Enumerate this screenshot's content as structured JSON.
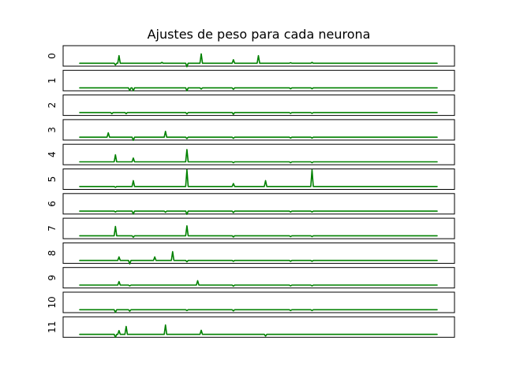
{
  "chart_data": {
    "type": "line",
    "title": "Ajustes de peso para cada neurona",
    "xlabel": "",
    "ylabel": "",
    "grid": false,
    "xticks": false,
    "yticks": false,
    "line_color": "#008000",
    "x_range": [
      0,
      100
    ],
    "subplot_ylim": [
      -1,
      6
    ],
    "subplot_labels": [
      "0",
      "1",
      "2",
      "3",
      "4",
      "5",
      "6",
      "7",
      "8",
      "9",
      "10",
      "11"
    ],
    "subplots": [
      {
        "label": "0",
        "spikes": [
          [
            10,
            -0.6
          ],
          [
            11,
            2.6
          ],
          [
            23,
            0.3
          ],
          [
            30,
            -1.2
          ],
          [
            34,
            3.2
          ],
          [
            43,
            1.2
          ],
          [
            50,
            2.6
          ],
          [
            59,
            0.2
          ],
          [
            65,
            0.3
          ]
        ]
      },
      {
        "label": "1",
        "spikes": [
          [
            14,
            -0.9
          ],
          [
            15,
            -1.0
          ],
          [
            30,
            -1.0
          ],
          [
            34,
            -0.4
          ],
          [
            43,
            -0.5
          ],
          [
            59,
            -0.3
          ],
          [
            65,
            -0.3
          ]
        ]
      },
      {
        "label": "2",
        "spikes": [
          [
            9,
            -0.4
          ],
          [
            13,
            -0.4
          ],
          [
            30,
            -0.5
          ],
          [
            43,
            -0.6
          ],
          [
            59,
            -0.3
          ],
          [
            65,
            -0.3
          ]
        ]
      },
      {
        "label": "3",
        "spikes": [
          [
            8,
            1.5
          ],
          [
            15,
            -1.1
          ],
          [
            24,
            2.0
          ],
          [
            30,
            -0.5
          ],
          [
            43,
            -0.4
          ],
          [
            59,
            -0.3
          ],
          [
            65,
            -0.3
          ]
        ]
      },
      {
        "label": "4",
        "spikes": [
          [
            10,
            2.4
          ],
          [
            15,
            1.3
          ],
          [
            30,
            4.2
          ],
          [
            43,
            -0.3
          ],
          [
            59,
            -0.3
          ],
          [
            65,
            -0.3
          ]
        ]
      },
      {
        "label": "5",
        "spikes": [
          [
            10,
            -0.3
          ],
          [
            15,
            2.0
          ],
          [
            30,
            5.7
          ],
          [
            43,
            1.0
          ],
          [
            52,
            2.0
          ],
          [
            65,
            5.7
          ]
        ]
      },
      {
        "label": "6",
        "spikes": [
          [
            10,
            -0.3
          ],
          [
            15,
            -1.0
          ],
          [
            24,
            -0.4
          ],
          [
            30,
            -1.1
          ],
          [
            43,
            -0.5
          ],
          [
            59,
            -0.3
          ],
          [
            65,
            -0.3
          ]
        ]
      },
      {
        "label": "7",
        "spikes": [
          [
            10,
            3.2
          ],
          [
            15,
            -0.5
          ],
          [
            30,
            3.4
          ],
          [
            43,
            -0.4
          ],
          [
            59,
            -0.3
          ],
          [
            65,
            -0.3
          ]
        ]
      },
      {
        "label": "8",
        "spikes": [
          [
            11,
            1.2
          ],
          [
            14,
            -1.2
          ],
          [
            21,
            1.2
          ],
          [
            26,
            3.0
          ],
          [
            30,
            -0.5
          ],
          [
            43,
            -0.3
          ],
          [
            59,
            -0.3
          ],
          [
            65,
            -0.3
          ]
        ]
      },
      {
        "label": "9",
        "spikes": [
          [
            11,
            1.2
          ],
          [
            14,
            -0.3
          ],
          [
            33,
            1.5
          ],
          [
            43,
            -0.4
          ],
          [
            59,
            -0.3
          ],
          [
            65,
            -0.3
          ]
        ]
      },
      {
        "label": "10",
        "spikes": [
          [
            10,
            -0.9
          ],
          [
            14,
            -0.5
          ],
          [
            30,
            -0.3
          ],
          [
            43,
            -0.4
          ],
          [
            59,
            -0.3
          ],
          [
            65,
            -0.3
          ]
        ]
      },
      {
        "label": "11",
        "spikes": [
          [
            10,
            -1.0
          ],
          [
            11,
            1.3
          ],
          [
            13,
            2.7
          ],
          [
            24,
            3.2
          ],
          [
            34,
            1.4
          ],
          [
            52,
            -0.6
          ]
        ]
      }
    ]
  }
}
